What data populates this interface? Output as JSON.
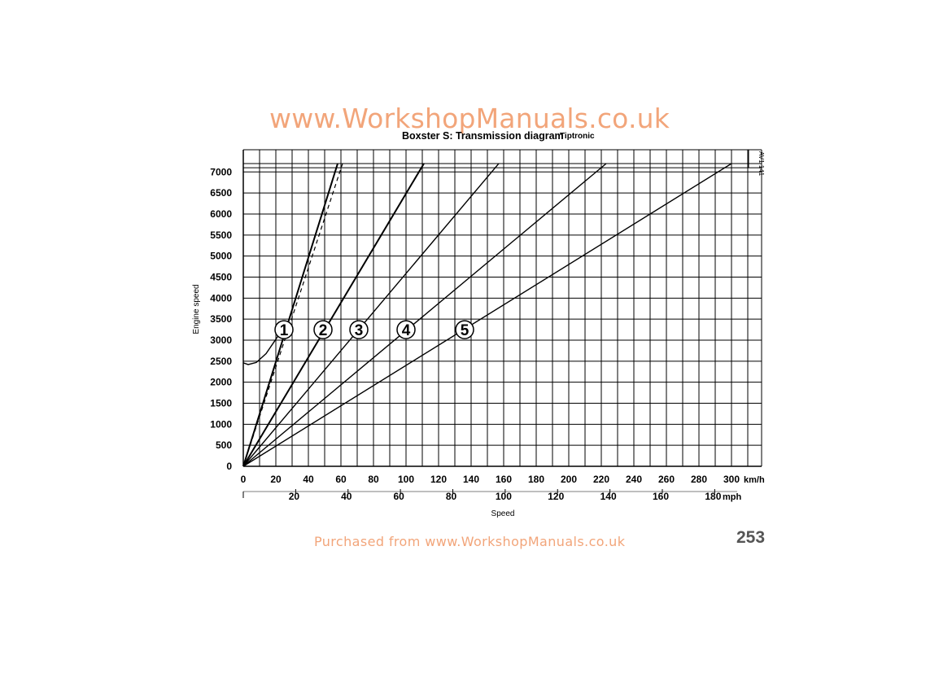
{
  "page": {
    "watermark_top": "www.WorkshopManuals.co.uk",
    "watermark_bottom": "Purchased from www.WorkshopManuals.co.uk",
    "page_number": "253",
    "watermark_color": "#f2a57a"
  },
  "chart_data": {
    "type": "line",
    "title": "Boxster S: Transmission diagram",
    "subtitle": "Tiptronic",
    "xlabel": "Speed",
    "ylabel": "Engine speed",
    "x_unit_primary": "km/h",
    "x_unit_secondary": "mph",
    "figure_code": "AV1 141",
    "xlim": [
      0,
      320
    ],
    "ylim": [
      0,
      7500
    ],
    "x_ticks_kmh": [
      "0",
      "20",
      "40",
      "60",
      "80",
      "100",
      "120",
      "140",
      "160",
      "180",
      "200",
      "220",
      "240",
      "260",
      "280",
      "300"
    ],
    "x_ticks_mph": [
      "20",
      "40",
      "60",
      "80",
      "100",
      "120",
      "140",
      "160",
      "180"
    ],
    "y_ticks": [
      "0",
      "500",
      "1000",
      "1500",
      "2000",
      "2500",
      "3000",
      "3500",
      "4000",
      "4500",
      "5000",
      "5500",
      "6000",
      "6500",
      "7000"
    ],
    "rev_limit_rpm": [
      7100,
      7200
    ],
    "grid": true,
    "gears": [
      {
        "name": "1",
        "label_at": [
          25,
          3250
        ],
        "end": [
          58,
          7200
        ]
      },
      {
        "name": "2",
        "label_at": [
          49,
          3250
        ],
        "end": [
          111,
          7200
        ]
      },
      {
        "name": "3",
        "label_at": [
          71,
          3250
        ],
        "end": [
          157,
          7200
        ]
      },
      {
        "name": "4",
        "label_at": [
          100,
          3250
        ],
        "end": [
          223,
          7200
        ]
      },
      {
        "name": "5",
        "label_at": [
          136,
          3250
        ],
        "end": [
          300,
          7200
        ]
      }
    ],
    "dashed_line": {
      "end": [
        61,
        7200
      ]
    },
    "converter_curve": [
      [
        0,
        2460
      ],
      [
        3,
        2420
      ],
      [
        8,
        2470
      ],
      [
        14,
        2680
      ],
      [
        20,
        3020
      ],
      [
        25,
        3330
      ]
    ]
  }
}
